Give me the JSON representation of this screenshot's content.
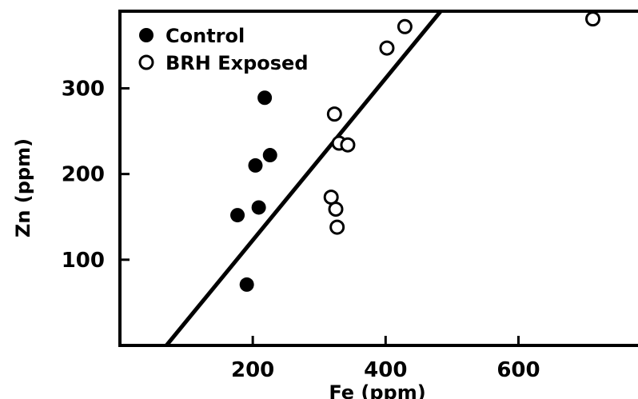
{
  "chart_data": {
    "type": "scatter",
    "title": "",
    "xlabel": "Fe (ppm)",
    "ylabel": "Zn (ppm)",
    "xlim": [
      0,
      780
    ],
    "ylim": [
      0,
      390
    ],
    "xticks": [
      200,
      400,
      600
    ],
    "yticks": [
      100,
      200,
      300
    ],
    "x_tick_labels": [
      "200",
      "400",
      "600"
    ],
    "y_tick_labels": [
      "100",
      "200",
      "300"
    ],
    "legend_position": "top-left",
    "grid": false,
    "series": [
      {
        "name": "Control",
        "marker": "filled-circle",
        "color": "#000000",
        "points": [
          [
            218,
            289
          ],
          [
            204,
            210
          ],
          [
            226,
            222
          ],
          [
            177,
            152
          ],
          [
            209,
            161
          ],
          [
            191,
            71
          ]
        ]
      },
      {
        "name": "BRH Exposed",
        "marker": "open-circle",
        "color": "#000000",
        "points": [
          [
            712,
            381
          ],
          [
            429,
            372
          ],
          [
            402,
            347
          ],
          [
            323,
            270
          ],
          [
            330,
            236
          ],
          [
            343,
            234
          ],
          [
            318,
            173
          ],
          [
            325,
            159
          ],
          [
            327,
            138
          ]
        ]
      }
    ],
    "fit_line": {
      "x": [
        70,
        483
      ],
      "y": [
        0,
        390
      ]
    }
  }
}
